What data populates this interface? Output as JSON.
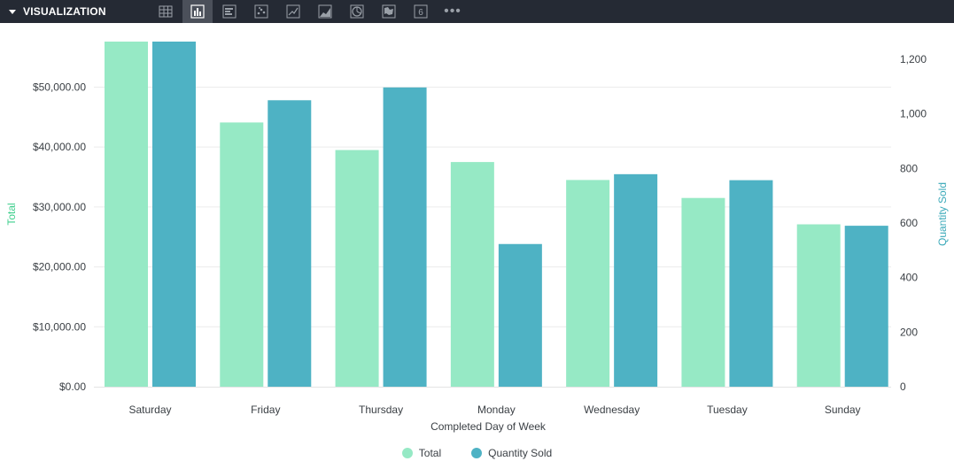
{
  "toolbar": {
    "title": "VISUALIZATION",
    "buttons": [
      {
        "icon": "table-icon",
        "active": false
      },
      {
        "icon": "column-chart-icon",
        "active": true
      },
      {
        "icon": "bar-chart-icon",
        "active": false
      },
      {
        "icon": "scatter-chart-icon",
        "active": false
      },
      {
        "icon": "line-chart-icon",
        "active": false
      },
      {
        "icon": "area-chart-icon",
        "active": false
      },
      {
        "icon": "pie-chart-icon",
        "active": false
      },
      {
        "icon": "map-icon",
        "active": false
      },
      {
        "icon": "single-value-icon",
        "active": false,
        "text": "6"
      }
    ],
    "more": "•••"
  },
  "chart_data": {
    "type": "bar",
    "categories": [
      "Saturday",
      "Friday",
      "Thursday",
      "Monday",
      "Wednesday",
      "Tuesday",
      "Sunday"
    ],
    "series": [
      {
        "name": "Total",
        "axis": "left",
        "color": "#96e9c5",
        "values": [
          57600,
          44100,
          39500,
          37500,
          34500,
          31500,
          27100
        ]
      },
      {
        "name": "Quantity Sold",
        "axis": "right",
        "color": "#4eb2c4",
        "values": [
          1265,
          1050,
          1097,
          523,
          779,
          757,
          590
        ]
      }
    ],
    "xlabel": "Completed Day of Week",
    "ylabel_left": "Total",
    "ylabel_right": "Quantity Sold",
    "ylim_left": [
      0,
      57600
    ],
    "ylim_right": [
      0,
      1265
    ],
    "yticks_left": [
      0,
      10000,
      20000,
      30000,
      40000,
      50000
    ],
    "yticks_left_labels": [
      "$0.00",
      "$10,000.00",
      "$20,000.00",
      "$30,000.00",
      "$40,000.00",
      "$50,000.00"
    ],
    "yticks_right": [
      0,
      200,
      400,
      600,
      800,
      1000,
      1200
    ],
    "yticks_right_labels": [
      "0",
      "200",
      "400",
      "600",
      "800",
      "1,000",
      "1,200"
    ],
    "grid": true,
    "legend_position": "bottom-center",
    "gridline_color": "#ececec"
  }
}
